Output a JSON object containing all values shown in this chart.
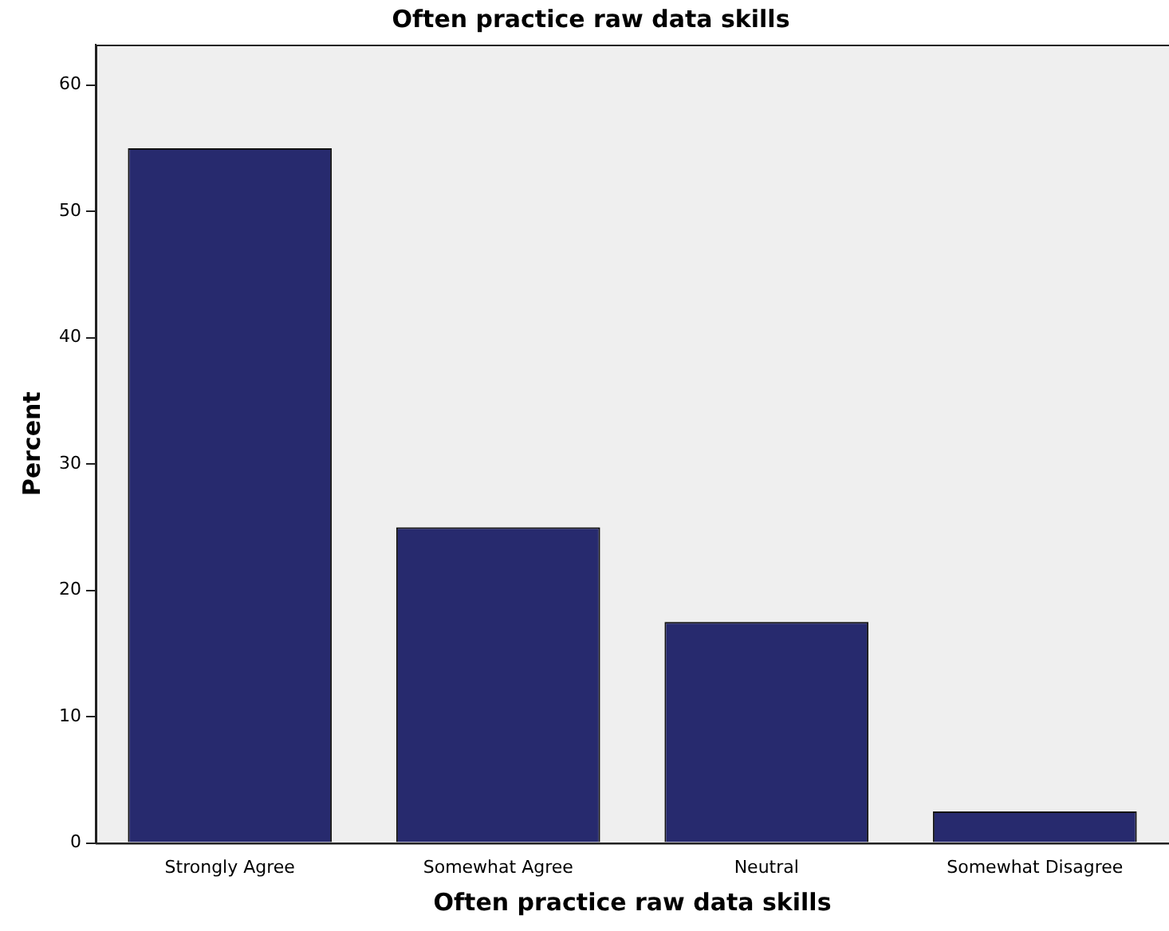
{
  "chart_data": {
    "type": "bar",
    "title": "Often practice raw data skills",
    "xlabel": "Often practice raw data skills",
    "ylabel": "Percent",
    "categories": [
      "Strongly Agree",
      "Somewhat Agree",
      "Neutral",
      "Somewhat Disagree"
    ],
    "values": [
      55,
      25,
      17.5,
      2.5
    ],
    "color": "#272a6e",
    "ylim": [
      0,
      63.2
    ],
    "yticks": [
      0,
      10,
      20,
      30,
      40,
      50,
      60
    ],
    "grid": false,
    "legend": false
  }
}
